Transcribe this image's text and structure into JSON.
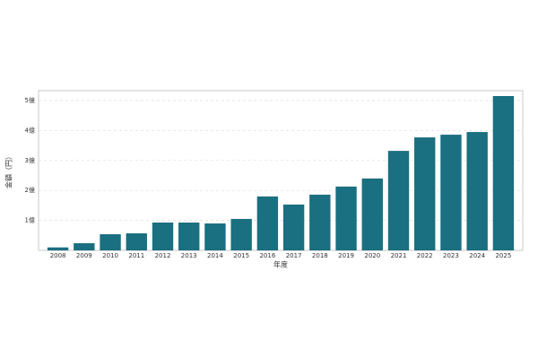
{
  "chart_data": {
    "type": "bar",
    "xlabel": "年度",
    "ylabel": "金額（円）",
    "categories": [
      "2008",
      "2009",
      "2010",
      "2011",
      "2012",
      "2013",
      "2014",
      "2015",
      "2016",
      "2017",
      "2018",
      "2019",
      "2020",
      "2021",
      "2022",
      "2023",
      "2024",
      "2025"
    ],
    "values": [
      10000000,
      24000000,
      54000000,
      57000000,
      93000000,
      93000000,
      90000000,
      105000000,
      180000000,
      153000000,
      186000000,
      213000000,
      240000000,
      332000000,
      377000000,
      386000000,
      395000000,
      515000000
    ],
    "color": "#1a6f80",
    "ylim": [
      0,
      533000000
    ],
    "yticks": [
      {
        "value": 100000000,
        "label": "1億"
      },
      {
        "value": 200000000,
        "label": "2億"
      },
      {
        "value": 300000000,
        "label": "3億"
      },
      {
        "value": 400000000,
        "label": "4億"
      },
      {
        "value": 500000000,
        "label": "5億"
      }
    ],
    "grid": true
  }
}
